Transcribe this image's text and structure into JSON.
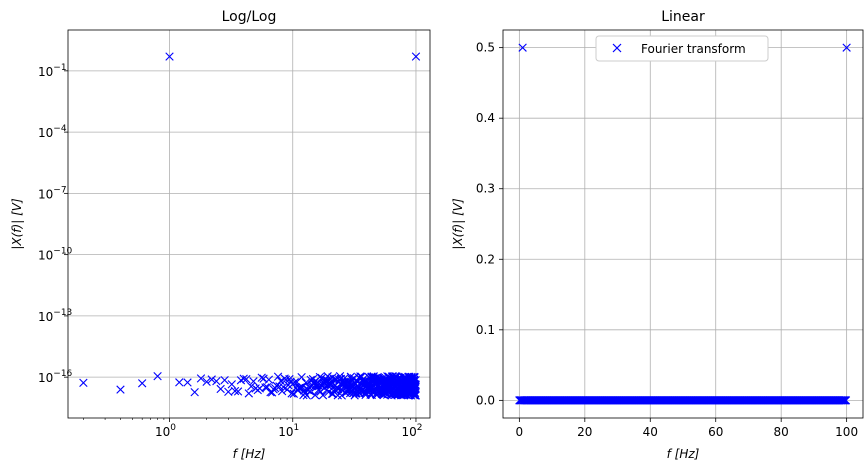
{
  "chart_data": [
    {
      "type": "scatter",
      "title": "Log/Log",
      "xlabel": "f [Hz]",
      "ylabel": "|X(f)| [V]",
      "xscale": "log",
      "yscale": "log",
      "xlim": [
        0.15,
        130
      ],
      "ylim": [
        1e-18,
        10
      ],
      "grid": true,
      "marker": "x",
      "color": "#0000ff",
      "xticks": [
        {
          "value": 1,
          "base": "10",
          "exp": "0"
        },
        {
          "value": 10,
          "base": "10",
          "exp": "1"
        },
        {
          "value": 100,
          "base": "10",
          "exp": "2"
        }
      ],
      "yticks": [
        {
          "value": 1e-16,
          "base": "10",
          "exp": "−16"
        },
        {
          "value": 1e-13,
          "base": "10",
          "exp": "−13"
        },
        {
          "value": 1e-10,
          "base": "10",
          "exp": "−10"
        },
        {
          "value": 1e-07,
          "base": "10",
          "exp": "−7"
        },
        {
          "value": 0.0001,
          "base": "10",
          "exp": "−4"
        },
        {
          "value": 0.1,
          "base": "10",
          "exp": "−1"
        }
      ],
      "peaks": [
        {
          "x": 1,
          "y": 0.5
        },
        {
          "x": 100,
          "y": 0.5
        }
      ],
      "noise": {
        "x_range": [
          0.2,
          100
        ],
        "y_range": [
          1e-17,
          1e-16
        ],
        "typical": 3e-17
      }
    },
    {
      "type": "scatter",
      "title": "Linear",
      "xlabel": "f [Hz]",
      "ylabel": "|X(f)| [V]",
      "xscale": "linear",
      "yscale": "linear",
      "xlim": [
        -5,
        105
      ],
      "ylim": [
        -0.025,
        0.525
      ],
      "grid": true,
      "marker": "x",
      "color": "#0000ff",
      "xticks": [
        "0",
        "20",
        "40",
        "60",
        "80",
        "100"
      ],
      "yticks": [
        "0.0",
        "0.1",
        "0.2",
        "0.3",
        "0.4",
        "0.5"
      ],
      "legend": {
        "label": "Fourier transform",
        "position": "upper center"
      },
      "peaks": [
        {
          "x": 1,
          "y": 0.5
        },
        {
          "x": 100,
          "y": 0.5
        }
      ],
      "baseline": {
        "x_range": [
          0,
          100
        ],
        "step": 0.2,
        "y": 0
      }
    }
  ]
}
